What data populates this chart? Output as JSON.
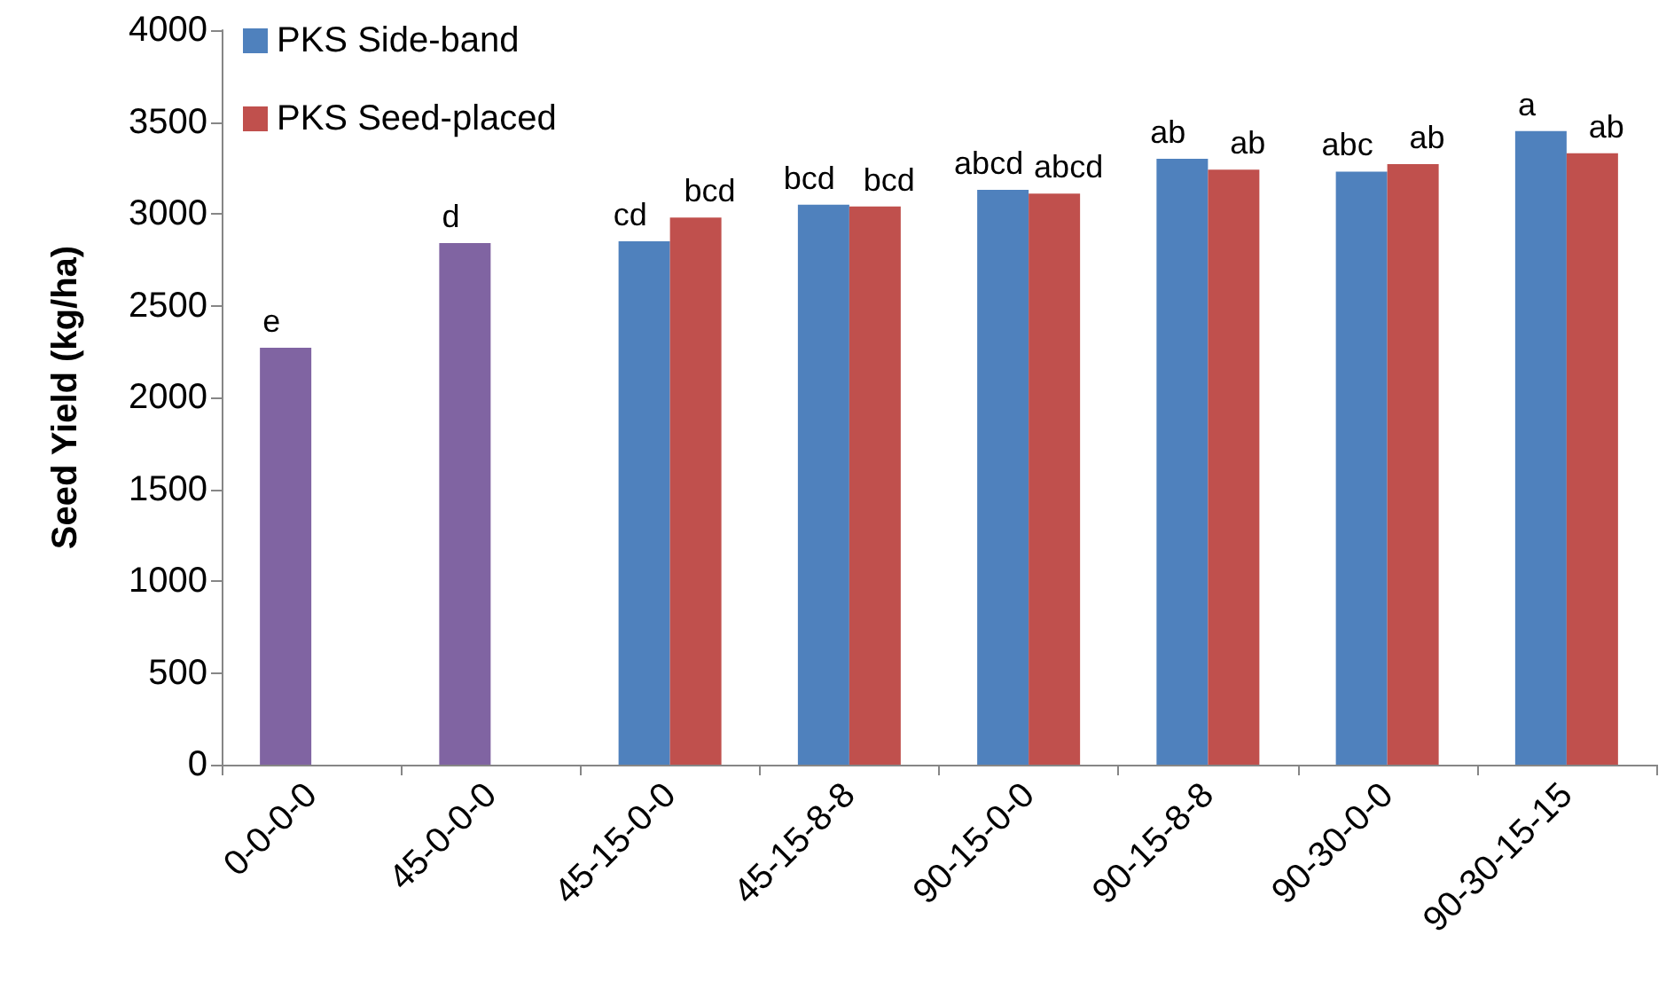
{
  "chart_data": {
    "type": "bar",
    "ylabel": "Seed Yield (kg/ha)",
    "categories": [
      "0-0-0-0",
      "45-0-0-0",
      "45-15-0-0",
      "45-15-8-8",
      "90-15-0-0",
      "90-15-8-8",
      "90-30-0-0",
      "90-30-15-15"
    ],
    "series": [
      {
        "name": "PKS Side-band",
        "color": "#4f81bd",
        "colors": [
          "#8064a2",
          "#8064a2",
          "#4f81bd",
          "#4f81bd",
          "#4f81bd",
          "#4f81bd",
          "#4f81bd",
          "#4f81bd"
        ],
        "values": [
          2270,
          2840,
          2850,
          3050,
          3130,
          3300,
          3230,
          3450
        ],
        "value_labels": [
          "e",
          "d",
          "cd",
          "bcd",
          "abcd",
          "ab",
          "abc",
          "a"
        ]
      },
      {
        "name": "PKS Seed-placed",
        "color": "#c0504d",
        "values": [
          null,
          null,
          2980,
          3040,
          3110,
          3240,
          3270,
          3330
        ],
        "value_labels": [
          null,
          null,
          "bcd",
          "bcd",
          "abcd",
          "ab",
          "ab",
          "ab"
        ]
      }
    ],
    "ylim": [
      0,
      4000
    ],
    "yticks": [
      0,
      500,
      1000,
      1500,
      2000,
      2500,
      3000,
      3500,
      4000
    ],
    "grid": false,
    "legend": "top left"
  }
}
